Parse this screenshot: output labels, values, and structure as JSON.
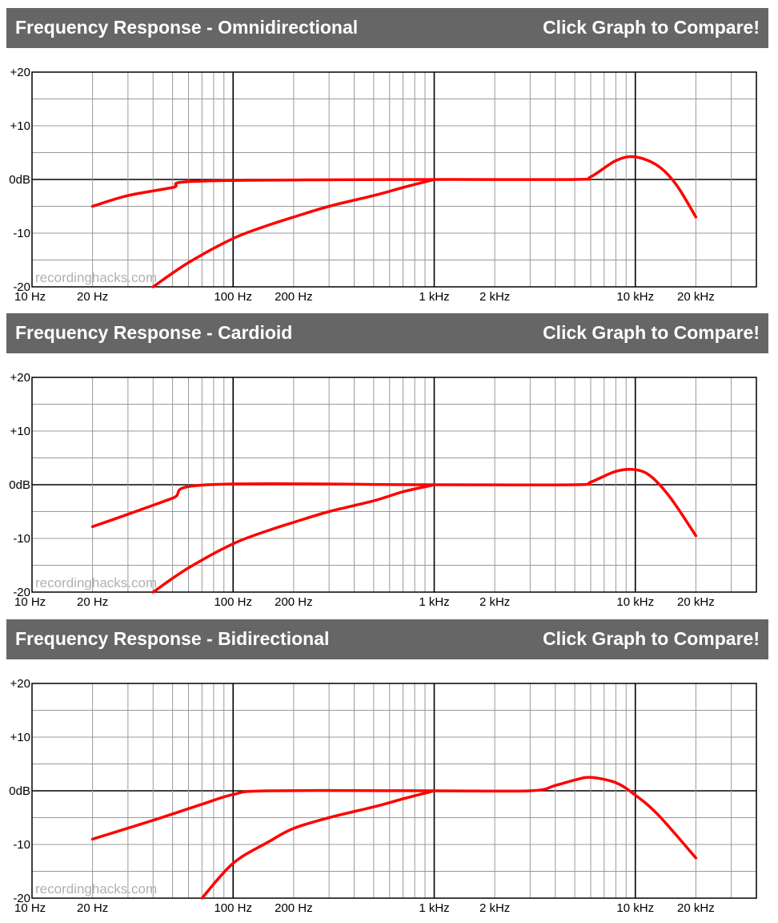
{
  "colors": {
    "header_bg": "#666666",
    "header_text": "#ffffff",
    "curve": "#ff0000",
    "grid": "#999999",
    "grid_major": "#000000"
  },
  "panels": [
    {
      "title": "Frequency Response - Omnidirectional",
      "compare_label": "Click Graph to Compare!"
    },
    {
      "title": "Frequency Response - Cardioid",
      "compare_label": "Click Graph to Compare!"
    },
    {
      "title": "Frequency Response - Bidirectional",
      "compare_label": "Click Graph to Compare!"
    }
  ],
  "chart_data": [
    {
      "type": "line",
      "x_scale": "log",
      "xlim": [
        10,
        40000
      ],
      "ylim": [
        -20,
        20
      ],
      "y_ticks": [
        20,
        10,
        0,
        -10,
        -20
      ],
      "y_tick_labels": [
        "+20",
        "+10",
        "0dB",
        "-10",
        "-20"
      ],
      "x_ticks": [
        10,
        20,
        100,
        200,
        1000,
        2000,
        10000,
        20000
      ],
      "x_tick_labels": [
        "10 Hz",
        "20 Hz",
        "100 Hz",
        "200 Hz",
        "1 kHz",
        "2 kHz",
        "10 kHz",
        "20 kHz"
      ],
      "grid": true,
      "watermark": "recordinghacks.com",
      "series": [
        {
          "x": [
            20,
            30,
            50,
            70,
            1000,
            5000,
            6000,
            8000,
            10000,
            13000,
            16000,
            20000
          ],
          "y": [
            -5,
            -3,
            -1.5,
            -0.3,
            0,
            0,
            0.5,
            3.5,
            4.2,
            2.5,
            -1,
            -7
          ]
        },
        {
          "x": [
            40,
            60,
            100,
            150,
            200,
            300,
            500,
            700,
            1000
          ],
          "y": [
            -20,
            -15.5,
            -11,
            -8.5,
            -7,
            -5,
            -3,
            -1.5,
            0
          ]
        }
      ]
    },
    {
      "type": "line",
      "x_scale": "log",
      "xlim": [
        10,
        40000
      ],
      "ylim": [
        -20,
        20
      ],
      "y_ticks": [
        20,
        10,
        0,
        -10,
        -20
      ],
      "y_tick_labels": [
        "+20",
        "+10",
        "0dB",
        "-10",
        "-20"
      ],
      "x_ticks": [
        10,
        20,
        100,
        200,
        1000,
        2000,
        10000,
        20000
      ],
      "x_tick_labels": [
        "10 Hz",
        "20 Hz",
        "100 Hz",
        "200 Hz",
        "1 kHz",
        "2 kHz",
        "10 kHz",
        "20 kHz"
      ],
      "grid": true,
      "watermark": "recordinghacks.com",
      "series": [
        {
          "x": [
            20,
            30,
            50,
            75,
            1000,
            5000,
            6000,
            8000,
            10000,
            12000,
            15000,
            20000
          ],
          "y": [
            -7.8,
            -5.5,
            -2.5,
            0,
            0,
            0,
            0.5,
            2.5,
            2.8,
            1.5,
            -2.5,
            -9.5
          ]
        },
        {
          "x": [
            40,
            60,
            100,
            150,
            200,
            300,
            500,
            700,
            1000
          ],
          "y": [
            -20,
            -15.5,
            -11,
            -8.5,
            -7,
            -5,
            -3,
            -1.3,
            0
          ]
        }
      ]
    },
    {
      "type": "line",
      "x_scale": "log",
      "xlim": [
        10,
        40000
      ],
      "ylim": [
        -20,
        20
      ],
      "y_ticks": [
        20,
        10,
        0,
        -10,
        -20
      ],
      "y_tick_labels": [
        "+20",
        "+10",
        "0dB",
        "-10",
        "-20"
      ],
      "x_ticks": [
        10,
        20,
        100,
        200,
        1000,
        2000,
        10000,
        20000
      ],
      "x_tick_labels": [
        "10 Hz",
        "20 Hz",
        "100 Hz",
        "200 Hz",
        "1 kHz",
        "2 kHz",
        "10 kHz",
        "20 kHz"
      ],
      "grid": true,
      "watermark": "recordinghacks.com",
      "series": [
        {
          "x": [
            20,
            40,
            70,
            100,
            150,
            1000,
            3000,
            4000,
            5000,
            6000,
            8000,
            10000,
            13000,
            20000
          ],
          "y": [
            -9,
            -5.5,
            -2.5,
            -0.7,
            0,
            0,
            0,
            1,
            2,
            2.5,
            1.5,
            -0.8,
            -4.5,
            -12.5
          ]
        },
        {
          "x": [
            70,
            100,
            150,
            200,
            300,
            500,
            700,
            1000
          ],
          "y": [
            -20,
            -13.5,
            -9.5,
            -7,
            -5,
            -3,
            -1.5,
            0
          ]
        }
      ]
    }
  ]
}
